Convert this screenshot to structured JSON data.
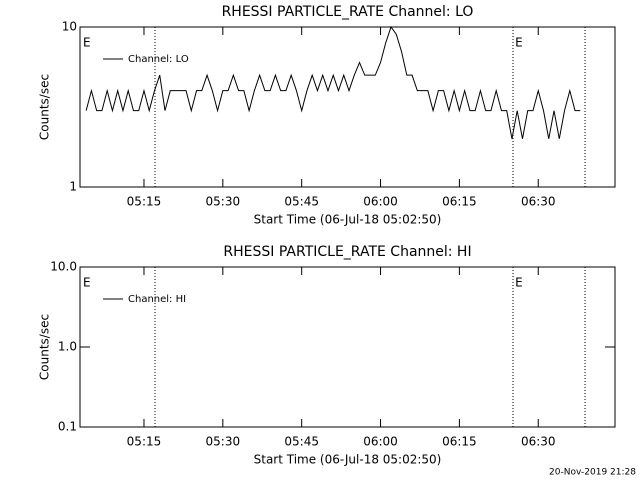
{
  "chart_data": [
    {
      "type": "line",
      "title": "RHESSI PARTICLE_RATE Channel: LO",
      "xlabel": "Start Time (06-Jul-18 05:02:50)",
      "ylabel": "Counts/sec",
      "log_y": true,
      "xlim": [
        302.83,
        404.6
      ],
      "ylim": [
        1,
        10
      ],
      "xticks": [
        {
          "value": 315,
          "label": "05:15"
        },
        {
          "value": 330,
          "label": "05:30"
        },
        {
          "value": 345,
          "label": "05:45"
        },
        {
          "value": 360,
          "label": "06:00"
        },
        {
          "value": 375,
          "label": "06:15"
        },
        {
          "value": 390,
          "label": "06:30"
        }
      ],
      "yticks": [
        1,
        10
      ],
      "legend": "upper left",
      "vlines": [
        317.1,
        385.2,
        398.9
      ],
      "annotations": [
        {
          "text": "E",
          "x": 303.4
        },
        {
          "text": "E",
          "x": 385.6
        }
      ],
      "series": [
        {
          "name": "Channel: LO",
          "color": "#000000",
          "x": [
            304,
            305,
            306,
            307,
            308,
            309,
            310,
            311,
            312,
            313,
            314,
            315,
            316,
            317,
            318,
            319,
            320,
            321,
            322,
            323,
            324,
            325,
            326,
            327,
            328,
            329,
            330,
            331,
            332,
            333,
            334,
            335,
            336,
            337,
            338,
            339,
            340,
            341,
            342,
            343,
            344,
            345,
            346,
            347,
            348,
            349,
            350,
            351,
            352,
            353,
            354,
            355,
            356,
            357,
            358,
            359,
            360,
            361,
            362,
            363,
            364,
            365,
            366,
            367,
            368,
            369,
            370,
            371,
            372,
            373,
            374,
            375,
            376,
            377,
            378,
            379,
            380,
            381,
            382,
            383,
            384,
            385,
            386,
            387,
            388,
            389,
            390,
            391,
            392,
            393,
            394,
            395,
            396,
            397,
            398
          ],
          "values": [
            3,
            4,
            3,
            3,
            4,
            3,
            4,
            3,
            4,
            3,
            3,
            4,
            3,
            4,
            5,
            3,
            4,
            4,
            4,
            4,
            3,
            4,
            4,
            5,
            4,
            3,
            4,
            4,
            5,
            4,
            4,
            3,
            4,
            5,
            4,
            4,
            5,
            4,
            4,
            5,
            4,
            3,
            4,
            5,
            4,
            5,
            4,
            5,
            4,
            5,
            4,
            5,
            6,
            5,
            5,
            5,
            6,
            8,
            10,
            9,
            7,
            5,
            5,
            4,
            4,
            4,
            3,
            4,
            4,
            3,
            4,
            3,
            4,
            3,
            3,
            4,
            3,
            3,
            4,
            3,
            3,
            2,
            3,
            2,
            3,
            3,
            4,
            3,
            2,
            3,
            2,
            3,
            4,
            3,
            3
          ]
        }
      ]
    },
    {
      "type": "line",
      "title": "RHESSI PARTICLE_RATE Channel: HI",
      "xlabel": "Start Time (06-Jul-18 05:02:50)",
      "ylabel": "Counts/sec",
      "log_y": true,
      "xlim": [
        302.83,
        404.6
      ],
      "ylim": [
        0.1,
        10
      ],
      "xticks": [
        {
          "value": 315,
          "label": "05:15"
        },
        {
          "value": 330,
          "label": "05:30"
        },
        {
          "value": 345,
          "label": "05:45"
        },
        {
          "value": 360,
          "label": "06:00"
        },
        {
          "value": 375,
          "label": "06:15"
        },
        {
          "value": 390,
          "label": "06:30"
        }
      ],
      "yticks": [
        {
          "value": 0.1,
          "label": "0.1"
        },
        {
          "value": 1,
          "label": "1.0"
        },
        {
          "value": 10,
          "label": "10.0"
        }
      ],
      "legend": "upper left",
      "vlines": [
        317.1,
        385.2,
        398.9
      ],
      "annotations": [
        {
          "text": "E",
          "x": 303.4
        },
        {
          "text": "E",
          "x": 385.6
        }
      ],
      "series": [
        {
          "name": "Channel: HI",
          "color": "#000000",
          "x": [],
          "values": []
        }
      ]
    }
  ],
  "footer": "20-Nov-2019 21:28"
}
